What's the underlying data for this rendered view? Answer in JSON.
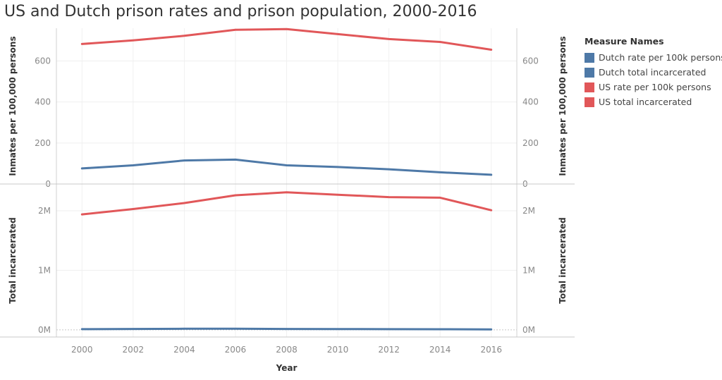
{
  "title": "US and Dutch prison rates and prison population, 2000-2016",
  "legend": {
    "title": "Measure Names",
    "items": [
      {
        "label": "Dutch rate per 100k persons",
        "color": "#4e79a7"
      },
      {
        "label": "Dutch total incarcerated",
        "color": "#4e79a7"
      },
      {
        "label": "US rate per 100k persons",
        "color": "#e15759"
      },
      {
        "label": "US total incarcerated",
        "color": "#e15759"
      }
    ]
  },
  "chart_data": [
    {
      "type": "line",
      "title": "",
      "xlabel": "Year",
      "ylabel": "Inmates per 100,000 persons",
      "ylabel_right": "Inmates per 100,000 persons",
      "x": [
        2000,
        2002,
        2004,
        2006,
        2008,
        2010,
        2012,
        2014,
        2016
      ],
      "ylim": [
        0,
        760
      ],
      "yticks": [
        {
          "value": 0,
          "label": "0"
        },
        {
          "value": 200,
          "label": "200"
        },
        {
          "value": 400,
          "label": "400"
        },
        {
          "value": 600,
          "label": "600"
        }
      ],
      "series": [
        {
          "name": "US rate per 100k persons",
          "color": "#e15759",
          "values": [
            683,
            701,
            723,
            752,
            756,
            731,
            707,
            693,
            655
          ]
        },
        {
          "name": "Dutch rate per 100k persons",
          "color": "#4e79a7",
          "values": [
            76,
            91,
            115,
            119,
            91,
            83,
            72,
            57,
            45
          ]
        }
      ]
    },
    {
      "type": "line",
      "title": "",
      "xlabel": "Year",
      "ylabel": "Total incarcerated",
      "ylabel_right": "Total incarcerated",
      "x": [
        2000,
        2002,
        2004,
        2006,
        2008,
        2010,
        2012,
        2014,
        2016
      ],
      "ylim": [
        -120000,
        2450000
      ],
      "yticks": [
        {
          "value": 0,
          "label": "0M"
        },
        {
          "value": 1000000,
          "label": "1M"
        },
        {
          "value": 2000000,
          "label": "2M"
        }
      ],
      "xticks": [
        "2000",
        "2002",
        "2004",
        "2006",
        "2008",
        "2010",
        "2012",
        "2014",
        "2016"
      ],
      "series": [
        {
          "name": "US total incarcerated",
          "color": "#e15759",
          "values": [
            1940000,
            2030000,
            2130000,
            2260000,
            2310000,
            2270000,
            2230000,
            2220000,
            2010000
          ]
        },
        {
          "name": "Dutch total incarcerated",
          "color": "#4e79a7",
          "values": [
            12000,
            14800,
            18900,
            19900,
            15000,
            13600,
            11900,
            9700,
            7600
          ]
        }
      ]
    }
  ]
}
